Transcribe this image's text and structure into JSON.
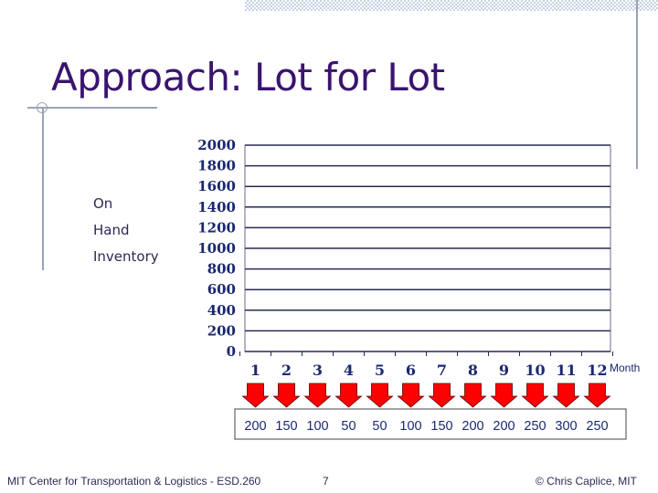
{
  "slide": {
    "title": "Approach: Lot for Lot",
    "y_label_lines": [
      "On",
      "Hand",
      "Inventory"
    ],
    "footer_left": "MIT Center for Transportation & Logistics - ESD.260",
    "page_number": "7",
    "footer_right": "© Chris Caplice, MIT"
  },
  "colors": {
    "title": "#3a1470",
    "axis_text": "#1a2870",
    "gridline": "#2a2a55",
    "arrow_fill": "#ff0000",
    "demand_text": "#1a2870"
  },
  "chart_data": {
    "type": "bar",
    "xlabel": "Month",
    "ylabel": "On Hand Inventory",
    "ylim": [
      0,
      2000
    ],
    "yticks": [
      0,
      200,
      400,
      600,
      800,
      1000,
      1200,
      1400,
      1600,
      1800,
      2000
    ],
    "categories": [
      "1",
      "2",
      "3",
      "4",
      "5",
      "6",
      "7",
      "8",
      "9",
      "10",
      "11",
      "12"
    ],
    "series": [],
    "grid": true,
    "demand_arrows": {
      "values": [
        200,
        150,
        100,
        50,
        50,
        100,
        150,
        200,
        200,
        250,
        300,
        250
      ],
      "direction": "down"
    }
  }
}
